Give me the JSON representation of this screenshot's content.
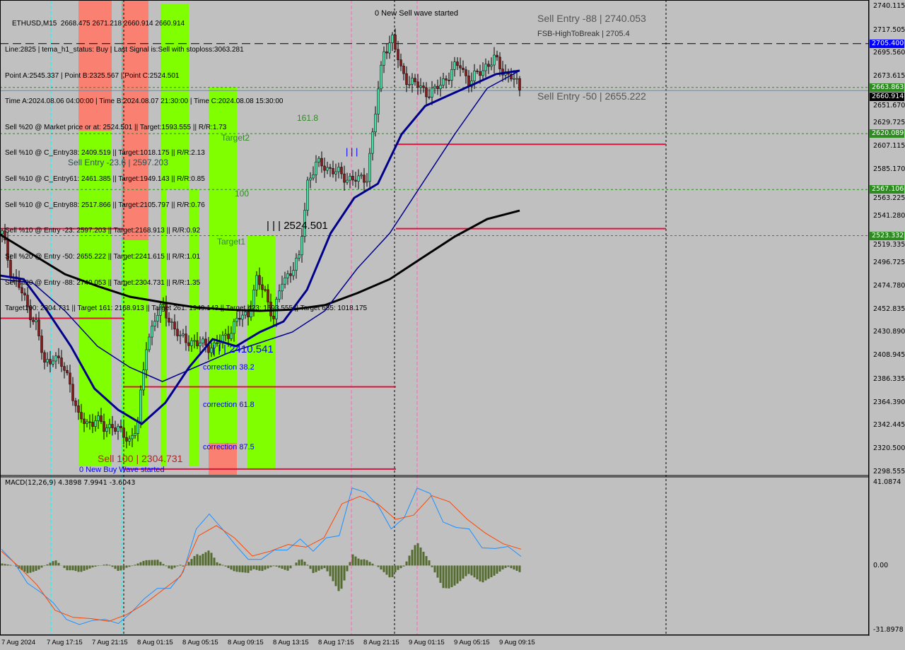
{
  "header": {
    "title": "ETHUSD,M15  2668.475 2671.218 2660.914 2660.914",
    "lines": [
      "Line:2825 | tema_h1_status: Buy | Last Signal is:Sell with stoploss:3063.281",
      "Point A:2545.337 | Point B:2325.567 | Point C:2524.501",
      "Time A:2024.08.06 04:00:00 | Time B:2024.08.07 21:30:00 | Time C:2024.08.08 15:30:00",
      "Sell %20 @ Market price or at: 2524.501 || Target:1593.555 || R/R:1.73",
      "Sell %10 @ C_Entry38: 2409.519 || Target:1018.175 || R/R:2.13",
      "Sell %10 @ C_Entry61: 2461.385 || Target:1949.143 || R/R:0.85",
      "Sell %10 @ C_Entry88: 2517.866 || Target:2105.797 || R/R:0.76",
      "Sell %10 @ Entry -23: 2597.203 || Target:2168.913 || R/R:0.92",
      "Sell %20 @ Entry -50: 2655.222 || Target:2241.615 || R/R:1.01",
      "Sell %20 @ Entry -88: 2740.053 || Target:2304.731 || R/R:1.35",
      "Target100: 2304.731 || Target 161: 2168.913 || Target 261: 1949.143 || Target 423: 1593.555 || Target 685: 1018.175"
    ]
  },
  "annotations": {
    "sell_entry_88": "Sell Entry -88 | 2740.053",
    "fsb": "FSB-HighToBreak | 2705.4",
    "sell_entry_50": "Sell Entry -50 | 2655.222",
    "sell_entry_23": "Sell Entry -23.6 | 2597.203",
    "fib_161": "161.8",
    "target2": "Target2",
    "fib_100": "100",
    "target1": "Target1",
    "point_c": "| | | 2524.501",
    "point_c2": "| | | 2410.541",
    "blue_bars": "| | |",
    "corr_38": "correction 38.2",
    "corr_61": "correction 61.8",
    "corr_87": "correction 87.5",
    "new_sell_wave": "0 New Sell wave started",
    "new_buy_wave": "0 New Buy Wave started",
    "sell_100": "Sell 100 | 2304.731"
  },
  "price_axis": {
    "ticks": [
      "2740.115",
      "2717.505",
      "2695.560",
      "2673.615",
      "2651.670",
      "2629.725",
      "2607.115",
      "2585.170",
      "2563.225",
      "2541.280",
      "2519.335",
      "2496.725",
      "2474.780",
      "2452.835",
      "2430.890",
      "2408.945",
      "2386.335",
      "2364.390",
      "2342.445",
      "2320.500",
      "2298.555"
    ],
    "markers": [
      {
        "value": "2705.400",
        "color": "#0000ff"
      },
      {
        "value": "2663.863",
        "color": "#2e8b22"
      },
      {
        "value": "2660.914",
        "color": "#000000"
      },
      {
        "value": "2620.089",
        "color": "#2e8b22"
      },
      {
        "value": "2567.106",
        "color": "#2e8b22"
      },
      {
        "value": "2523.332",
        "color": "#2e8b22"
      }
    ]
  },
  "macd": {
    "label": "MACD(12,26,9) 4.3898 7.9941 -3.6043",
    "axis_top": "41.0874",
    "axis_zero": "0.00",
    "axis_bottom": "-31.8978"
  },
  "time_axis": [
    "7 Aug 2024",
    "7 Aug 17:15",
    "7 Aug 21:15",
    "8 Aug 01:15",
    "8 Aug 05:15",
    "8 Aug 09:15",
    "8 Aug 13:15",
    "8 Aug 17:15",
    "8 Aug 21:15",
    "9 Aug 01:15",
    "9 Aug 05:15",
    "9 Aug 09:15"
  ],
  "colors": {
    "background": "#c0c0c0",
    "bull": "#40e0a0",
    "bear": "#8b1a1a",
    "ma_slow": "#000000",
    "ma_fast": "#00008b",
    "macd_main": "#1e90ff",
    "macd_signal": "#ff4500",
    "histogram": "#556b2f",
    "zone_green": "#80ff00",
    "zone_red": "#fa8072",
    "level_red": "#dc143c"
  },
  "chart_data": {
    "type": "candlestick",
    "symbol": "ETHUSD",
    "timeframe": "M15",
    "ylim": [
      2298.555,
      2740.115
    ],
    "closes": [
      2525,
      2490,
      2475,
      2455,
      2440,
      2400,
      2410,
      2400,
      2385,
      2350,
      2345,
      2350,
      2340,
      2345,
      2335,
      2330,
      2345,
      2420,
      2445,
      2455,
      2440,
      2425,
      2425,
      2420,
      2420,
      2418,
      2425,
      2435,
      2445,
      2450,
      2480,
      2470,
      2445,
      2480,
      2490,
      2500,
      2575,
      2590,
      2590,
      2585,
      2580,
      2578,
      2575,
      2580,
      2640,
      2700,
      2710,
      2680,
      2670,
      2665,
      2660,
      2660,
      2670,
      2680,
      2685,
      2670,
      2675,
      2685,
      2690,
      2680,
      2675,
      2661
    ],
    "ma_slow": [
      2524.4,
      2505.6,
      2486.8,
      2475.5,
      2465.4,
      2460.1,
      2455.4,
      2453.3,
      2452,
      2453.3,
      2457.4,
      2468.8,
      2482.1,
      2502.3,
      2522.4,
      2539.1,
      2547.1
    ],
    "ma_fast": [
      2485.5,
      2482.1,
      2452,
      2418.5,
      2378.3,
      2358.2,
      2344.8,
      2364.9,
      2398.4,
      2425.2,
      2418.5,
      2431.9,
      2441.9,
      2472.1,
      2525.7,
      2559.2,
      2572.6,
      2619.5,
      2646.3,
      2656.4,
      2666.4,
      2676.5,
      2679.8
    ],
    "ma_mid": [
      2482.1,
      2478.8,
      2452,
      2418.5,
      2398.4,
      2385,
      2398.4,
      2411.8,
      2421.8,
      2431.9,
      2452,
      2492.2,
      2525.7,
      2572.6,
      2619.5,
      2663.1,
      2679.8
    ],
    "levels": {
      "dashed_black": 2705.4,
      "dashed_green": [
        2663.863,
        2620.089,
        2567.106,
        2523.332
      ],
      "current": 2660.914,
      "red": [
        2610,
        2530,
        2445,
        2380,
        2302
      ]
    },
    "macd_ylim": [
      -31.8978,
      41.0874
    ],
    "macd_main": [
      7.9,
      1.3,
      -8.5,
      -12.8,
      -18,
      -26,
      -28.5,
      -26.5,
      -26,
      -28,
      -22.6,
      -16,
      -11,
      -11,
      -3,
      17.7,
      24.9,
      17.7,
      10,
      3,
      3,
      7.5,
      7.5,
      12.8,
      6.9,
      13.4,
      14.4,
      37.4,
      35.4,
      28.9,
      17.7,
      23,
      37.4,
      34.8,
      21,
      18.4,
      17.7,
      8.5,
      8.2,
      9.2,
      4.4
    ],
    "macd_signal": [
      6.9,
      -0.7,
      -9.5,
      -21.6,
      -25,
      -25.6,
      -26.9,
      -23.6,
      -18.4,
      -11.8,
      -5.2,
      14.4,
      19.3,
      13.4,
      4.6,
      6.9,
      10.2,
      8.9,
      13.4,
      29.8,
      33.4,
      29.8,
      22.3,
      24.3,
      33.8,
      30.8,
      22.3,
      15.7,
      10.5,
      7.9
    ]
  }
}
